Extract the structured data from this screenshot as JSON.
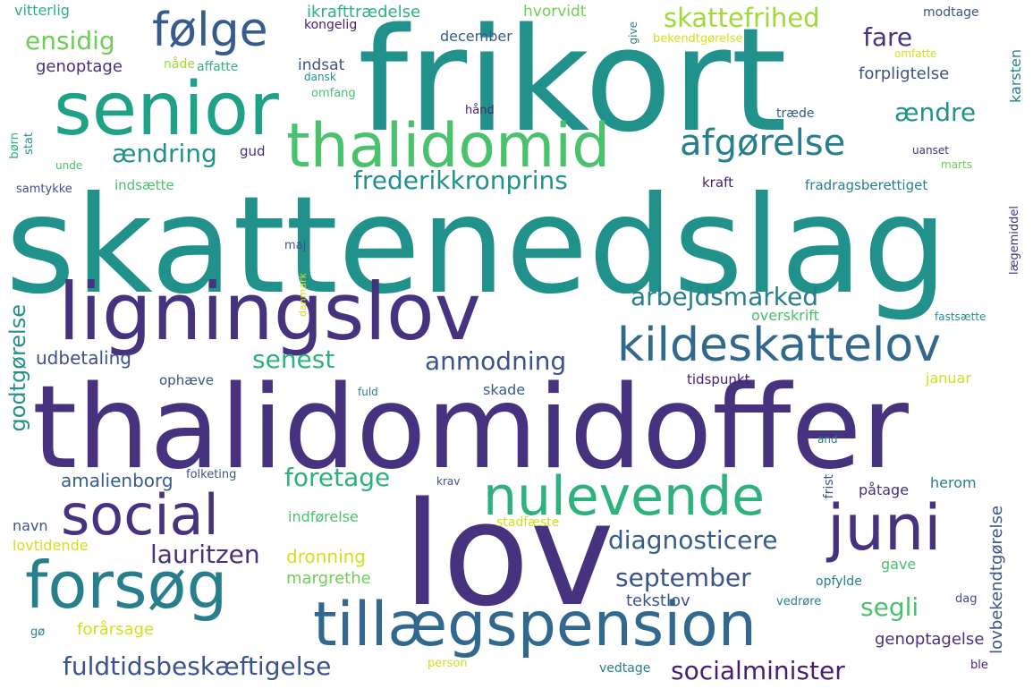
{
  "palette": {
    "dark_purple": "#46327e",
    "indigo": "#3b528b",
    "blue": "#365c8d",
    "steel_blue": "#31688e",
    "teal": "#277f8e",
    "sea_green": "#21918c",
    "green": "#1fa187",
    "jade": "#2db27d",
    "light_green": "#4ac16d",
    "lime": "#6ece58",
    "yellow_green": "#a0da39",
    "yellow": "#d0e11c",
    "deep_purple": "#481f70"
  },
  "words": [
    "skattenedslag",
    "frikort",
    "thalidomidoffer",
    "lov",
    "ligningslov",
    "senior",
    "thalidomid",
    "tillægspension",
    "nulevende",
    "forsøg",
    "social",
    "juni",
    "kildeskattelov",
    "følge",
    "afgørelse",
    "frederikkronprins",
    "arbejdsmarked",
    "anmodning",
    "senest",
    "ensidig",
    "skattefrihed",
    "fare",
    "ændre",
    "ændring",
    "foretage",
    "diagnosticere",
    "lauritzen",
    "september",
    "fuldtidsbeskæftigelse",
    "socialminister",
    "segli",
    "godtgørelse",
    "udbetaling",
    "amalienborg",
    "dronning",
    "margrethe",
    "tekstlov",
    "lovbekendtgørelse",
    "genoptagelse",
    "forårsage",
    "vitterlig",
    "ikrafttrædelse",
    "hvorvidt",
    "modtage",
    "kongelig",
    "december",
    "give",
    "bekendtgørelse",
    "omfatte",
    "genoptage",
    "nåde",
    "affatte",
    "indsat",
    "dansk",
    "forpligtelse",
    "karsten",
    "omfang",
    "hånd",
    "træde",
    "børn",
    "stat",
    "unde",
    "gud",
    "uanset",
    "marts",
    "samtykke",
    "indsætte",
    "kraft",
    "fradragsberettiget",
    "lægemiddel",
    "maj",
    "danmark",
    "overskrift",
    "fastsætte",
    "ophæve",
    "skade",
    "tidspunkt",
    "januar",
    "fuld",
    "and",
    "folketing",
    "frist",
    "påtage",
    "krav",
    "herom",
    "indførelse",
    "navn",
    "stadfæste",
    "lovtidende",
    "gave",
    "opfylde",
    "vedrøre",
    "dag",
    "gø",
    "person",
    "vedtage",
    "ble"
  ]
}
